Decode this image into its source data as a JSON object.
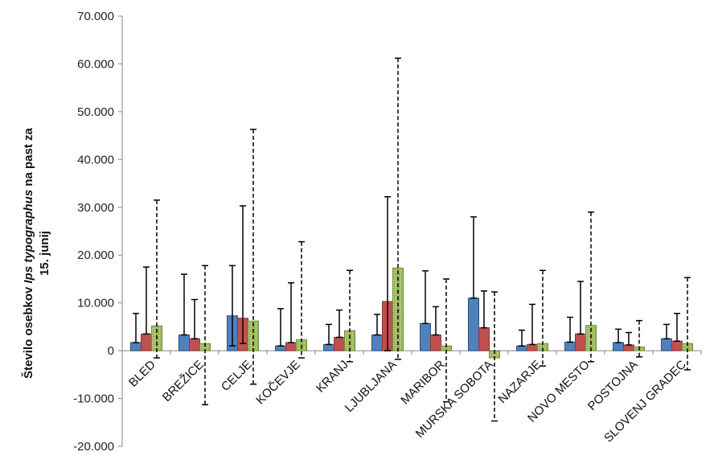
{
  "chart_data": {
    "type": "bar",
    "ylabel": {
      "line1_prefix": "Število osebkov ",
      "line1_italic": "Ips typographus",
      "line1_suffix": " na past za",
      "line2": "15. junij"
    },
    "ylim": [
      -20,
      70
    ],
    "yticks": [
      -20,
      -10,
      0,
      10,
      20,
      30,
      40,
      50,
      60,
      70
    ],
    "ytick_labels": [
      "-20.000",
      "-10.000",
      "0",
      "10.000",
      "20.000",
      "30.000",
      "40.000",
      "50.000",
      "60.000",
      "70.000"
    ],
    "grid": false,
    "legend": "none",
    "categories": [
      "BLED",
      "BREŽICE",
      "CELJE",
      "KOČEVJE",
      "KRANJ",
      "LJUBLJANA",
      "MARIBOR",
      "MURSKA SOBOTA",
      "NAZARJE",
      "NOVO MESTO",
      "POSTOJNA",
      "SLOVENJ GRADEC"
    ],
    "series": [
      {
        "color": "#4F81BD",
        "values": [
          1.7,
          3.3,
          7.3,
          1.0,
          1.3,
          3.3,
          5.7,
          11.0,
          1.0,
          1.8,
          1.7,
          2.5
        ],
        "error_low": [
          1.7,
          3.3,
          1.0,
          1.0,
          1.3,
          3.3,
          5.7,
          11.0,
          1.0,
          1.8,
          1.7,
          2.5
        ],
        "error_high": [
          7.8,
          16.0,
          17.8,
          8.8,
          5.5,
          7.6,
          16.7,
          28.0,
          4.3,
          7.0,
          4.5,
          5.5
        ],
        "error_style": "solid"
      },
      {
        "color": "#C0504D",
        "values": [
          3.5,
          2.5,
          6.8,
          1.7,
          2.8,
          10.3,
          3.3,
          4.8,
          1.3,
          3.5,
          1.2,
          2.0
        ],
        "error_low": [
          3.5,
          2.5,
          1.5,
          1.7,
          2.8,
          0.0,
          3.3,
          4.8,
          1.3,
          3.5,
          1.2,
          2.0
        ],
        "error_high": [
          17.5,
          10.7,
          30.3,
          14.2,
          8.5,
          32.2,
          9.2,
          12.5,
          9.7,
          14.5,
          3.8,
          7.8
        ],
        "error_style": "solid"
      },
      {
        "color": "#9BBB59",
        "values": [
          5.2,
          1.5,
          6.2,
          2.3,
          4.2,
          17.3,
          1.0,
          -1.5,
          1.5,
          5.3,
          0.8,
          1.5
        ],
        "error_low": [
          -1.5,
          -11.3,
          -7.0,
          -1.5,
          -2.3,
          -1.8,
          -10.7,
          -14.7,
          -3.2,
          -2.3,
          -1.3,
          -4.0
        ],
        "error_high": [
          31.5,
          17.8,
          46.3,
          22.8,
          16.8,
          61.2,
          15.0,
          12.3,
          16.8,
          29.0,
          6.3,
          15.3
        ],
        "error_style": "dashed"
      }
    ]
  }
}
